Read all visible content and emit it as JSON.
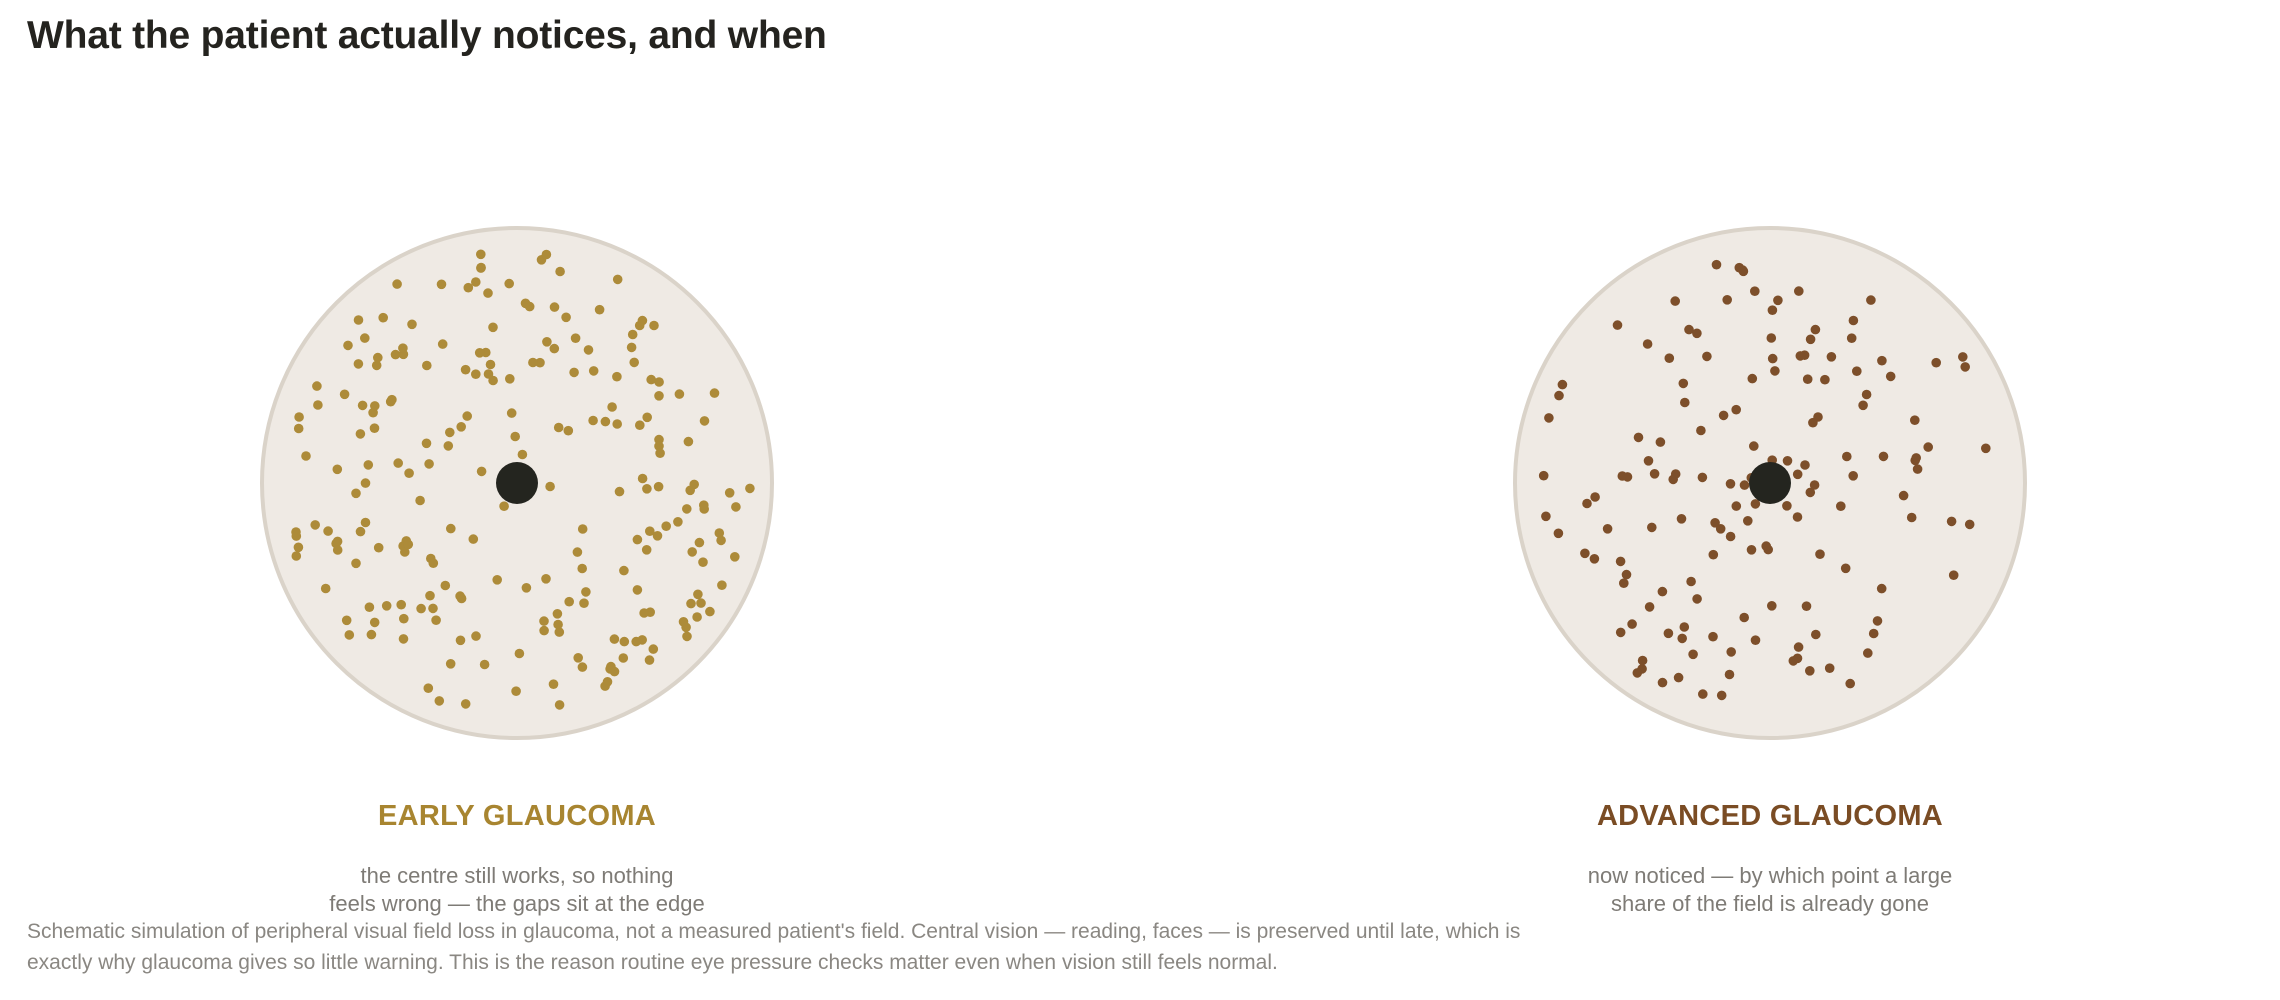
{
  "title": "What the patient actually notices, and when",
  "panels": [
    {
      "label": "EARLY GLAUCOMA",
      "desc_line1": "the centre still works, so nothing",
      "desc_line2": "feels wrong — the gaps sit at the edge",
      "color": "#a88530",
      "dot_color": "#ad8b39",
      "dot_count": 220,
      "field_retained": "most of the field, gaps at the edge"
    },
    {
      "label": "ADVANCED GLAUCOMA",
      "desc_line1": "now noticed — by which point a large",
      "desc_line2": "share of the field is already gone",
      "color": "#7a4c24",
      "dot_color": "#7d4f2a",
      "dot_count": 150,
      "field_retained": "sparse field, preserved centre"
    }
  ],
  "field_background": "#efeae4",
  "field_border": "#dad3c9",
  "fixation_color": "#24251f",
  "footnote": "Schematic simulation of peripheral visual field loss in glaucoma, not a measured patient's field. Central vision — reading, faces — is preserved until late, which is exactly why glaucoma gives so little warning. This is the reason routine eye pressure checks matter even when vision still feels normal."
}
